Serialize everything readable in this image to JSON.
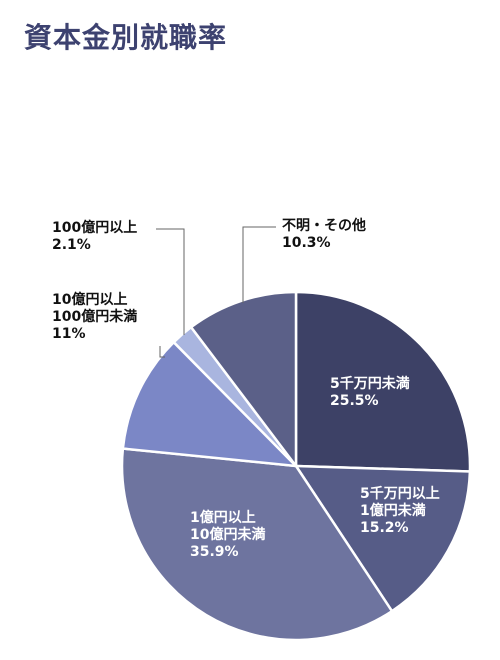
{
  "title": "資本金別就職率",
  "chart_data": {
    "type": "pie",
    "title": "資本金別就職率",
    "slices": [
      {
        "label": [
          "5千万円未満"
        ],
        "value": 25.5,
        "display": "25.5%",
        "color": "#3d4166",
        "text_color": "#ffffff"
      },
      {
        "label": [
          "5千万円以上",
          "1億円未満"
        ],
        "value": 15.2,
        "display": "15.2%",
        "color": "#565c87",
        "text_color": "#ffffff"
      },
      {
        "label": [
          "1億円以上",
          "10億円未満"
        ],
        "value": 35.9,
        "display": "35.9%",
        "color": "#6e749f",
        "text_color": "#ffffff"
      },
      {
        "label": [
          "10億円以上",
          "100億円未満"
        ],
        "value": 11,
        "display": "11%",
        "color": "#7b87c6",
        "text_color": "#111111"
      },
      {
        "label": [
          "100億円以上"
        ],
        "value": 2.1,
        "display": "2.1%",
        "color": "#a9b5df",
        "text_color": "#111111"
      },
      {
        "label": [
          "不明・その他"
        ],
        "value": 10.3,
        "display": "10.3%",
        "color": "#5b6088",
        "text_color": "#111111"
      }
    ],
    "start_angle": "12 o'clock",
    "direction": "clockwise"
  }
}
